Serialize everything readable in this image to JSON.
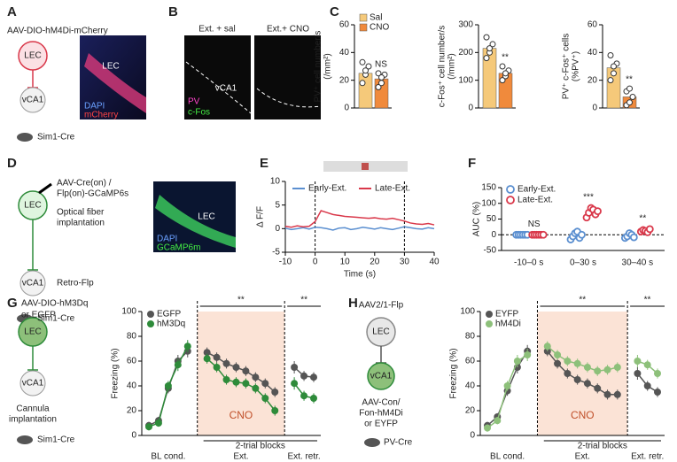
{
  "panels": {
    "a": {
      "letter": "A",
      "virus": "AAV-DIO-hM4Di-mCherry",
      "source": "LEC",
      "target": "vCA1",
      "mouse": "Sim1-Cre",
      "image_labels": [
        "LEC",
        "DAPI",
        "mCherry"
      ]
    },
    "b": {
      "letter": "B",
      "conditions": [
        "Ext. + sal",
        "Ext.+ CNO"
      ],
      "region": "vCA1",
      "stains": [
        "PV",
        "c-Fos"
      ]
    },
    "c": {
      "letter": "C"
    },
    "d": {
      "letter": "D",
      "virus": [
        "AAV-Cre(on) /",
        "Flp(on)-GCaMP6s"
      ],
      "procedure": [
        "Optical fiber",
        "implantation"
      ],
      "retro": "Retro-Flp",
      "source": "LEC",
      "target": "vCA1",
      "mouse": "Sim1-Cre",
      "image_labels": [
        "LEC",
        "DAPI",
        "GCaMP6m"
      ]
    },
    "e": {
      "letter": "E"
    },
    "f": {
      "letter": "F"
    },
    "g": {
      "letter": "G",
      "virus": [
        "AAV-DIO-hM3Dq",
        "or EGFP"
      ],
      "source": "LEC",
      "target": "vCA1",
      "procedure": [
        "Cannula",
        "implantation"
      ],
      "mouse": "Sim1-Cre"
    },
    "h": {
      "letter": "H",
      "virus": "AAV2/1-Flp",
      "source": "LEC",
      "target": "vCA1",
      "virus2": [
        "AAV-Con/",
        "Fon-hM4Di",
        "or EYFP"
      ],
      "mouse": "PV-Cre"
    }
  },
  "chart_data": [
    {
      "type": "bar",
      "y_label": [
        "PV⁺ cell number/s",
        "(/mm²)"
      ],
      "ylim": [
        0,
        60
      ],
      "yticks": [
        0,
        20,
        40,
        60
      ],
      "legend": true,
      "annotation": "NS",
      "series": [
        {
          "name": "Sal",
          "color": "#f5c97a",
          "values": [
            25
          ],
          "points": [
            18,
            24,
            30,
            33,
            27
          ]
        },
        {
          "name": "CNO",
          "color": "#f08a3c",
          "values": [
            21
          ],
          "points": [
            15,
            18,
            24,
            25,
            22
          ]
        }
      ]
    },
    {
      "type": "bar",
      "y_label": [
        "c-Fos⁺ cell number/s",
        "(/mm²)"
      ],
      "ylim": [
        0,
        300
      ],
      "yticks": [
        0,
        100,
        200,
        300
      ],
      "legend": false,
      "annotation": "**",
      "series": [
        {
          "name": "Sal",
          "color": "#f5c97a",
          "values": [
            215
          ],
          "points": [
            180,
            200,
            230,
            255,
            215
          ]
        },
        {
          "name": "CNO",
          "color": "#f08a3c",
          "values": [
            125
          ],
          "points": [
            100,
            115,
            135,
            150,
            125
          ]
        }
      ]
    },
    {
      "type": "bar",
      "y_label": [
        "PV⁺ c-Fos⁺ cells",
        "(%PV⁺)"
      ],
      "ylim": [
        0,
        60
      ],
      "yticks": [
        0,
        20,
        40,
        60
      ],
      "legend": false,
      "annotation": "**",
      "series": [
        {
          "name": "Sal",
          "color": "#f5c97a",
          "values": [
            29
          ],
          "points": [
            20,
            25,
            32,
            38,
            30
          ]
        },
        {
          "name": "CNO",
          "color": "#f08a3c",
          "values": [
            8
          ],
          "points": [
            2,
            4,
            8,
            12,
            14
          ]
        }
      ]
    },
    {
      "type": "line",
      "x_label": "Time (s)",
      "y_label": "Δ F/F",
      "xlim": [
        -10,
        40
      ],
      "xticks": [
        -10,
        0,
        10,
        20,
        30,
        40
      ],
      "ylim": [
        -5,
        10
      ],
      "yticks": [
        -5,
        0,
        5,
        10
      ],
      "vlines": [
        0,
        30
      ],
      "x": [
        -10,
        -8,
        -6,
        -4,
        -2,
        0,
        2,
        4,
        6,
        8,
        10,
        12,
        14,
        16,
        18,
        20,
        22,
        24,
        26,
        28,
        30,
        32,
        34,
        36,
        38,
        40
      ],
      "series": [
        {
          "name": "Early-Ext.",
          "color": "#5b8fd0",
          "values": [
            0.1,
            -0.2,
            0,
            0.2,
            -0.1,
            0.3,
            0.2,
            0,
            -0.3,
            0.1,
            0.2,
            -0.2,
            0,
            0.3,
            0.1,
            -0.1,
            0.2,
            0,
            -0.2,
            0.1,
            0.4,
            0.2,
            0,
            -0.1,
            0.2,
            0
          ]
        },
        {
          "name": "Late-Ext.",
          "color": "#d9384a",
          "values": [
            0.5,
            0.3,
            0.6,
            0.4,
            0.5,
            1.5,
            3.8,
            3.4,
            3.0,
            2.8,
            2.6,
            2.5,
            2.4,
            2.3,
            2.2,
            2.3,
            2.1,
            2.0,
            2.2,
            1.9,
            1.6,
            1.2,
            1.0,
            0.9,
            1.1,
            0.8
          ]
        }
      ]
    },
    {
      "type": "strip",
      "y_label": "AUC (%)",
      "ylim": [
        -50,
        150
      ],
      "yticks": [
        -50,
        0,
        50,
        100,
        150
      ],
      "categories": [
        "-10–0 s",
        "0–30 s",
        "30–40 s"
      ],
      "annotations": [
        "NS",
        "***",
        "**"
      ],
      "series": [
        {
          "name": "Early-Ext.",
          "color": "#5b8fd0",
          "values": [
            [
              0,
              0,
              0,
              0,
              0,
              0
            ],
            [
              -15,
              -5,
              5,
              10,
              -10,
              0
            ],
            [
              -10,
              -5,
              5,
              0,
              -8
            ]
          ]
        },
        {
          "name": "Late-Ext.",
          "color": "#d9384a",
          "values": [
            [
              0,
              0,
              0,
              0,
              0,
              0
            ],
            [
              55,
              70,
              85,
              80,
              65,
              75
            ],
            [
              10,
              15,
              12,
              8,
              18
            ]
          ]
        }
      ]
    },
    {
      "type": "errline",
      "y_label": "Freezing (%)",
      "ylim": [
        0,
        100
      ],
      "yticks": [
        0,
        20,
        40,
        60,
        80,
        100
      ],
      "shade_label": "CNO",
      "significance": [
        "**",
        "**"
      ],
      "group_labels": [
        "BL cond.",
        "Ext.",
        "Ext. retr."
      ],
      "block_label": "2-trial blocks",
      "categories": [
        null,
        null,
        null,
        null,
        null,
        null,
        null,
        null,
        null,
        null,
        null,
        null,
        null,
        null,
        null,
        null,
        null,
        null
      ],
      "series": [
        {
          "name": "EGFP",
          "color": "#555555",
          "values": [
            8,
            12,
            38,
            60,
            68,
            null,
            67,
            63,
            58,
            55,
            52,
            47,
            42,
            35,
            null,
            55,
            48,
            47
          ],
          "errors": [
            3,
            3,
            4,
            5,
            5,
            null,
            4,
            4,
            4,
            4,
            4,
            4,
            4,
            4,
            null,
            5,
            4,
            4
          ]
        },
        {
          "name": "hM3Dq",
          "color": "#2e8b3a",
          "values": [
            7,
            10,
            40,
            57,
            72,
            null,
            62,
            55,
            45,
            43,
            42,
            38,
            30,
            20,
            null,
            42,
            32,
            30
          ],
          "errors": [
            3,
            3,
            4,
            5,
            5,
            null,
            4,
            4,
            4,
            4,
            4,
            4,
            4,
            4,
            null,
            5,
            4,
            4
          ]
        }
      ]
    },
    {
      "type": "errline",
      "y_label": "Freezing (%)",
      "ylim": [
        0,
        100
      ],
      "yticks": [
        0,
        20,
        40,
        60,
        80,
        100
      ],
      "shade_label": "CNO",
      "significance": [
        "**",
        "**"
      ],
      "group_labels": [
        "BL cond.",
        "Ext.",
        "Ext. retr."
      ],
      "block_label": "2-trial blocks",
      "categories": [
        null,
        null,
        null,
        null,
        null,
        null,
        null,
        null,
        null,
        null,
        null,
        null,
        null,
        null,
        null,
        null,
        null,
        null
      ],
      "series": [
        {
          "name": "EYFP",
          "color": "#555555",
          "values": [
            8,
            15,
            36,
            55,
            68,
            null,
            68,
            58,
            50,
            45,
            42,
            38,
            33,
            33,
            null,
            50,
            40,
            35
          ],
          "errors": [
            3,
            3,
            4,
            5,
            5,
            null,
            4,
            4,
            4,
            4,
            4,
            4,
            4,
            4,
            null,
            5,
            4,
            4
          ]
        },
        {
          "name": "hM4Di",
          "color": "#8dc07a",
          "values": [
            6,
            12,
            40,
            60,
            65,
            null,
            72,
            65,
            60,
            58,
            55,
            52,
            53,
            55,
            null,
            60,
            57,
            50
          ],
          "errors": [
            3,
            3,
            4,
            5,
            5,
            null,
            4,
            4,
            4,
            4,
            4,
            4,
            4,
            4,
            null,
            5,
            4,
            4
          ]
        }
      ]
    }
  ]
}
